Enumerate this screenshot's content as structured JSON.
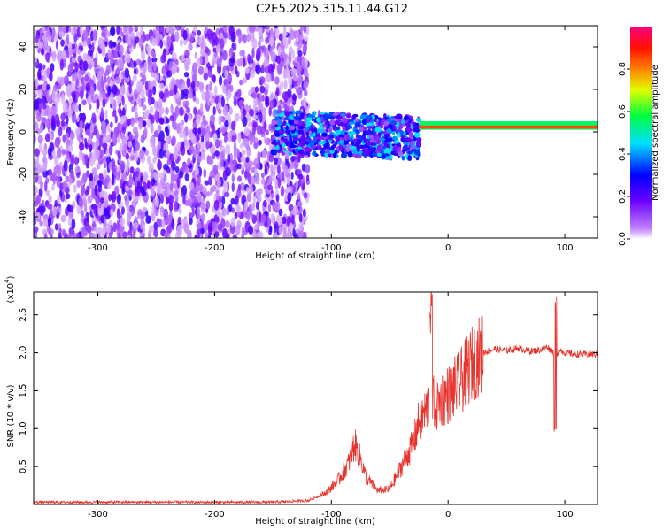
{
  "title": "C2E5.2025.315.11.44.G12",
  "chart_data": [
    {
      "type": "heatmap",
      "xlabel": "Height of straight line (km)",
      "ylabel": "Frequency (Hz)",
      "xlim": [
        -355,
        128
      ],
      "ylim": [
        -50,
        50
      ],
      "xticks": [
        -300,
        -200,
        -100,
        0,
        100
      ],
      "xtick_labels": [
        "-300",
        "-200",
        "-100",
        "0",
        "100"
      ],
      "yticks": [
        -40,
        -20,
        0,
        20,
        40
      ],
      "ytick_labels": [
        "-40",
        "-20",
        "0",
        "20",
        "40"
      ],
      "grid": false,
      "colorbar": {
        "label": "Normalized spectral amplitude",
        "range": [
          0,
          1
        ],
        "ticks": [
          0.0,
          0.2,
          0.4,
          0.6,
          0.8
        ],
        "tick_labels": [
          "0.0",
          "0.2",
          "0.4",
          "0.6",
          "0.8"
        ],
        "colors": [
          "#ffffff",
          "#8000ff",
          "#0000ff",
          "#00ffff",
          "#00ff00",
          "#ffff00",
          "#ff8000",
          "#ff0000",
          "#ff0080"
        ]
      },
      "regions": [
        {
          "x_range": [
            -355,
            -120
          ],
          "freq_range": [
            -50,
            50
          ],
          "amplitude": 0.05
        },
        {
          "x_range": [
            -150,
            -25
          ],
          "freq_center": 0,
          "freq_halfwidth": 10,
          "amplitude": 0.4
        },
        {
          "x_range": [
            -25,
            128
          ],
          "freq_center": 2,
          "freq_halfwidth": 2,
          "amplitude": 0.85
        }
      ]
    },
    {
      "type": "line",
      "xlabel": "Height of straight line (km)",
      "ylabel": "SNR (10 * v/v)",
      "y_scale_label": "(x10",
      "y_scale_exponent": "4",
      "xlim": [
        -355,
        128
      ],
      "ylim": [
        0,
        28000
      ],
      "xticks": [
        -300,
        -200,
        -100,
        0,
        100
      ],
      "xtick_labels": [
        "-300",
        "-200",
        "-100",
        "0",
        "100"
      ],
      "yticks": [
        5000,
        10000,
        15000,
        20000,
        25000
      ],
      "ytick_labels": [
        "0.5",
        "1.0",
        "1.5",
        "2.0",
        "2.5"
      ],
      "grid": false,
      "series_color": "#e8322c",
      "series": [
        {
          "x": [
            -355,
            -300,
            -250,
            -200,
            -150,
            -120,
            -105,
            -95,
            -85,
            -80,
            -75,
            -70,
            -60,
            -50,
            -40,
            -30,
            -25,
            -20,
            -15,
            -10,
            -5,
            0,
            10,
            20,
            30,
            40,
            50,
            60,
            70,
            80,
            85,
            90,
            92,
            95,
            100,
            110,
            128
          ],
          "y": [
            300,
            300,
            300,
            300,
            300,
            500,
            1500,
            3000,
            5500,
            8000,
            6000,
            3500,
            1800,
            2000,
            5000,
            8000,
            11000,
            12000,
            14000,
            13000,
            14000,
            14500,
            16000,
            18500,
            20000,
            20500,
            20300,
            20600,
            20200,
            20400,
            20800,
            20000,
            19000,
            20500,
            20000,
            19800,
            19800
          ]
        }
      ]
    }
  ]
}
